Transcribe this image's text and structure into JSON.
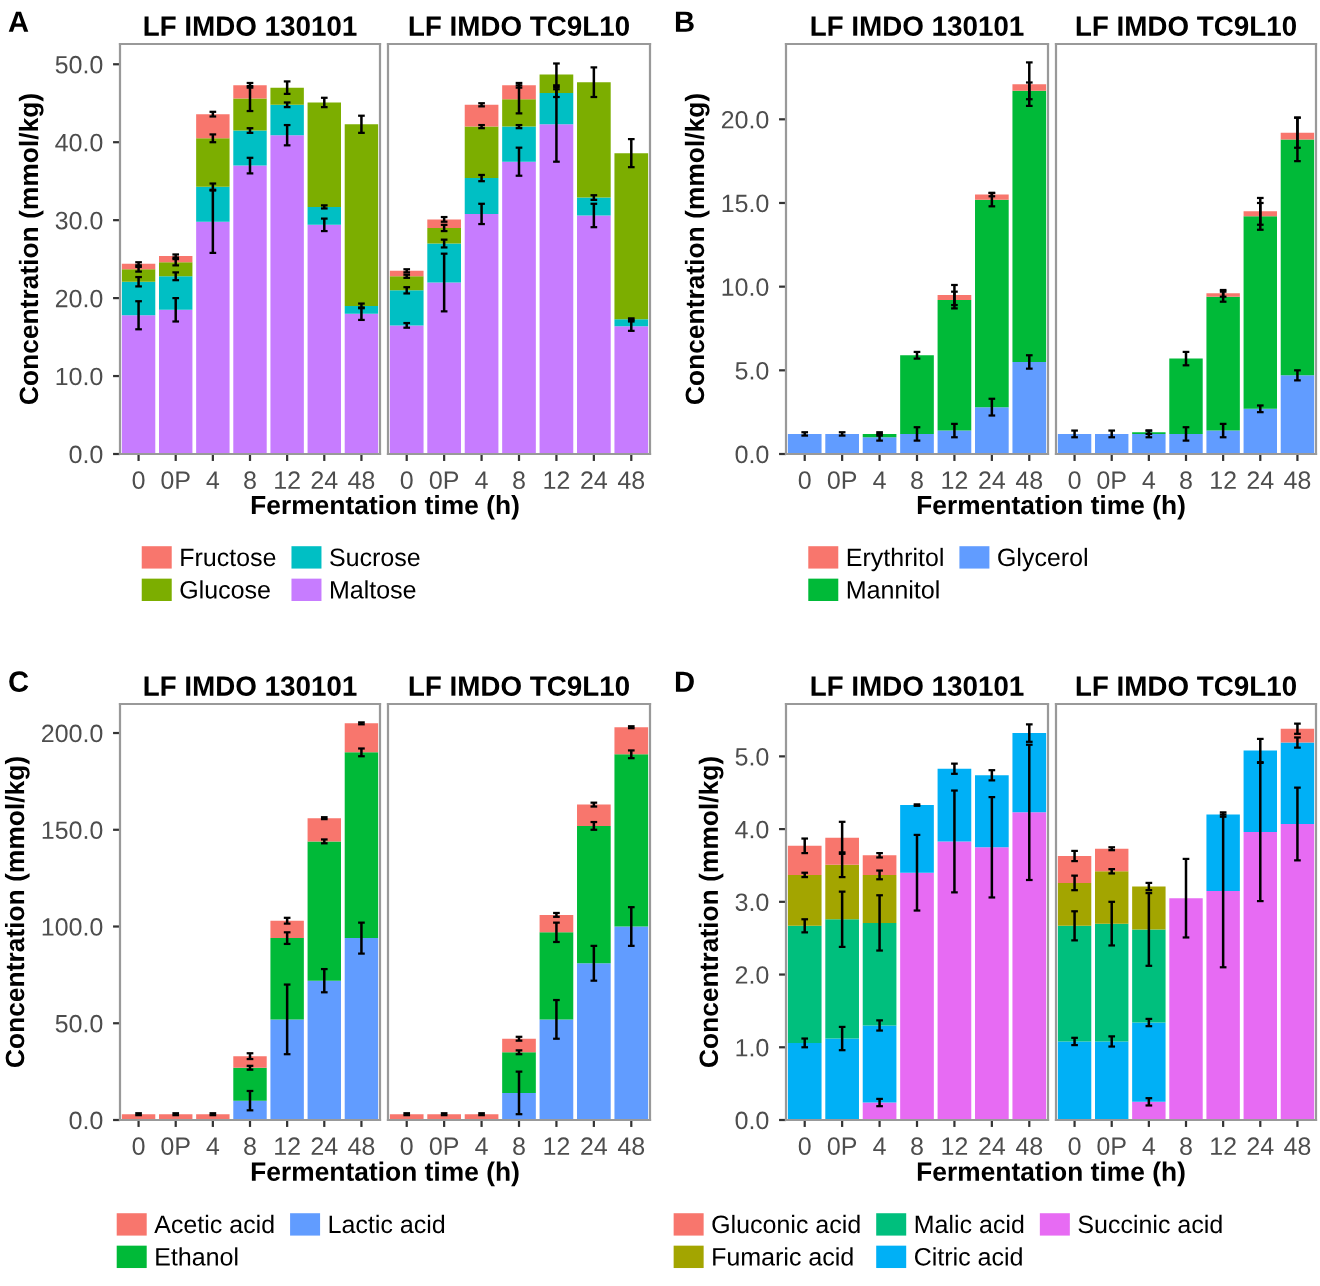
{
  "chart_data": [
    {
      "type": "bar",
      "stacked": true,
      "title": "LF IMDO 130101",
      "ylabel": "Concentration (mmol/kg)",
      "xlabel": "Fermentation time (h)",
      "annotations": [
        "A"
      ],
      "legend": "bottom",
      "categories": [
        "0",
        "0P",
        "4",
        "8",
        "12",
        "24",
        "48"
      ],
      "ylim": [
        0,
        52.6
      ],
      "yticks": [
        {
          "value": 0,
          "label": "0.0"
        },
        {
          "value": 10,
          "label": "10.0"
        },
        {
          "value": 20,
          "label": "20.0"
        },
        {
          "value": 30,
          "label": "30.0"
        },
        {
          "value": 40,
          "label": "40.0"
        },
        {
          "value": 50,
          "label": "50.0"
        }
      ],
      "series": [
        {
          "name": "Maltose",
          "color": "#c77cff",
          "values": [
            17.8,
            18.5,
            29.8,
            37.0,
            40.9,
            29.4,
            18.0
          ],
          "errors": [
            1.8,
            1.5,
            4.0,
            1.0,
            1.3,
            0.8,
            0.8
          ]
        },
        {
          "name": "Sucrose",
          "color": "#00bfc4",
          "values": [
            4.3,
            4.3,
            4.5,
            4.5,
            3.9,
            2.3,
            1.0
          ],
          "errors": [
            0.6,
            0.5,
            0.4,
            0.3,
            0.3,
            0.2,
            0.3
          ]
        },
        {
          "name": "Glucose",
          "color": "#7cae00",
          "values": [
            1.6,
            1.8,
            6.2,
            4.1,
            2.2,
            13.4,
            23.3
          ],
          "errors": [
            0.3,
            0.4,
            0.5,
            1.6,
            0.8,
            0.6,
            1.1
          ]
        },
        {
          "name": "Fructose",
          "color": "#f8766d",
          "values": [
            0.7,
            0.8,
            3.1,
            1.7,
            null,
            null,
            null
          ],
          "errors": [
            0.2,
            0.2,
            0.3,
            0.3,
            null,
            null,
            null
          ]
        }
      ]
    },
    {
      "type": "bar",
      "stacked": true,
      "title": "LF IMDO TC9L10",
      "tick_labels": "x",
      "categories": [
        "0",
        "0P",
        "4",
        "8",
        "12",
        "24",
        "48"
      ],
      "ylim": [
        0,
        52.6
      ],
      "series": [
        {
          "color": "#c77cff",
          "values": [
            16.5,
            22.0,
            30.8,
            37.5,
            42.3,
            30.6,
            16.4
          ],
          "errors": [
            0.3,
            3.7,
            1.3,
            1.8,
            4.8,
            1.5,
            0.6
          ]
        },
        {
          "color": "#00bfc4",
          "values": [
            4.5,
            5.0,
            4.6,
            4.5,
            4.0,
            2.3,
            0.9
          ],
          "errors": [
            0.4,
            0.5,
            0.4,
            0.2,
            0.5,
            0.3,
            0.1
          ]
        },
        {
          "color": "#7cae00",
          "values": [
            1.8,
            2.0,
            6.6,
            3.5,
            2.4,
            14.8,
            21.3
          ],
          "errors": [
            0.2,
            0.4,
            0.2,
            1.8,
            1.4,
            1.9,
            1.8
          ]
        },
        {
          "color": "#f8766d",
          "values": [
            0.7,
            1.1,
            2.8,
            1.8,
            null,
            null,
            null
          ],
          "errors": [
            0.2,
            0.3,
            0.2,
            0.3,
            null,
            null,
            null
          ]
        }
      ]
    },
    {
      "type": "bar",
      "stacked": true,
      "title": "LF IMDO 130101",
      "ylabel": "Concentration (mmol/kg)",
      "xlabel": "Fermentation time (h)",
      "annotations": [
        "B"
      ],
      "legend": "bottom",
      "categories": [
        "0",
        "0P",
        "4",
        "8",
        "12",
        "24",
        "48"
      ],
      "ylim": [
        0,
        24.5
      ],
      "yticks": [
        {
          "value": 0,
          "label": "0.0"
        },
        {
          "value": 5,
          "label": "5.0"
        },
        {
          "value": 10,
          "label": "10.0"
        },
        {
          "value": 15,
          "label": "15.0"
        },
        {
          "value": 20,
          "label": "20.0"
        }
      ],
      "series": [
        {
          "name": "Glycerol",
          "color": "#619cff",
          "values": [
            1.2,
            1.2,
            1.0,
            1.2,
            1.4,
            2.8,
            5.5
          ],
          "errors": [
            0.1,
            0.1,
            0.2,
            0.4,
            0.4,
            0.5,
            0.4
          ]
        },
        {
          "name": "Mannitol",
          "color": "#00ba38",
          "values": [
            null,
            null,
            0.2,
            4.7,
            7.8,
            12.4,
            16.2
          ],
          "errors": [
            null,
            null,
            0.1,
            0.2,
            0.5,
            0.4,
            0.5
          ]
        },
        {
          "name": "Erythritol",
          "color": "#f8766d",
          "values": [
            null,
            null,
            null,
            null,
            0.3,
            0.3,
            0.4
          ],
          "errors": [
            null,
            null,
            null,
            null,
            0.6,
            0.1,
            1.3
          ]
        }
      ]
    },
    {
      "type": "bar",
      "stacked": true,
      "title": "LF IMDO TC9L10",
      "tick_labels": "x",
      "categories": [
        "0",
        "0P",
        "4",
        "8",
        "12",
        "24",
        "48"
      ],
      "ylim": [
        0,
        24.5
      ],
      "series": [
        {
          "color": "#619cff",
          "values": [
            1.2,
            1.2,
            1.2,
            1.2,
            1.4,
            2.7,
            4.7
          ],
          "errors": [
            0.2,
            0.2,
            0.2,
            0.4,
            0.4,
            0.2,
            0.3
          ]
        },
        {
          "color": "#00ba38",
          "values": [
            null,
            null,
            0.1,
            4.5,
            8.0,
            11.5,
            14.1
          ],
          "errors": [
            null,
            null,
            0.1,
            0.4,
            0.3,
            0.8,
            1.3
          ]
        },
        {
          "color": "#f8766d",
          "values": [
            null,
            null,
            null,
            null,
            0.2,
            0.3,
            0.4
          ],
          "errors": [
            null,
            null,
            null,
            null,
            0.2,
            0.8,
            0.9
          ]
        }
      ]
    },
    {
      "type": "bar",
      "stacked": true,
      "title": "LF IMDO 130101",
      "ylabel": "Concentration (mmol/kg)",
      "xlabel": "Fermentation time (h)",
      "annotations": [
        "C"
      ],
      "legend": "bottom",
      "categories": [
        "0",
        "0P",
        "4",
        "8",
        "12",
        "24",
        "48"
      ],
      "ylim": [
        0,
        215
      ],
      "yticks": [
        {
          "value": 0,
          "label": "0.0"
        },
        {
          "value": 50,
          "label": "50.0"
        },
        {
          "value": 100,
          "label": "100.0"
        },
        {
          "value": 150,
          "label": "150.0"
        },
        {
          "value": 200,
          "label": "200.0"
        }
      ],
      "series": [
        {
          "name": "Lactic acid",
          "color": "#619cff",
          "values": [
            null,
            null,
            null,
            10,
            52,
            72,
            94
          ],
          "errors": [
            null,
            null,
            null,
            5,
            18,
            6,
            8
          ]
        },
        {
          "name": "Ethanol",
          "color": "#00ba38",
          "values": [
            null,
            null,
            null,
            17,
            42,
            72,
            96
          ],
          "errors": [
            null,
            null,
            null,
            1,
            3,
            1,
            2
          ]
        },
        {
          "name": "Acetic acid",
          "color": "#f8766d",
          "values": [
            3,
            3,
            3,
            6,
            9,
            12,
            15
          ],
          "errors": [
            0.5,
            0.5,
            0.5,
            1.5,
            1.5,
            0.5,
            0.5
          ]
        }
      ]
    },
    {
      "type": "bar",
      "stacked": true,
      "title": "LF IMDO TC9L10",
      "tick_labels": "x",
      "categories": [
        "0",
        "0P",
        "4",
        "8",
        "12",
        "24",
        "48"
      ],
      "ylim": [
        0,
        215
      ],
      "series": [
        {
          "color": "#619cff",
          "values": [
            null,
            null,
            null,
            14,
            52,
            81,
            100
          ],
          "errors": [
            null,
            null,
            null,
            11,
            10,
            9,
            10
          ]
        },
        {
          "color": "#00ba38",
          "values": [
            null,
            null,
            null,
            21,
            45,
            71,
            89
          ],
          "errors": [
            null,
            null,
            null,
            1,
            5,
            2,
            2
          ]
        },
        {
          "color": "#f8766d",
          "values": [
            3,
            3,
            3,
            7,
            9,
            11,
            14
          ],
          "errors": [
            0.5,
            0.5,
            0.5,
            1,
            1,
            1,
            0.5
          ]
        }
      ]
    },
    {
      "type": "bar",
      "stacked": true,
      "title": "LF IMDO 130101",
      "ylabel": "Concentration (mmol/kg)",
      "xlabel": "Fermentation time (h)",
      "annotations": [
        "D"
      ],
      "legend": "bottom",
      "categories": [
        "0",
        "0P",
        "4",
        "8",
        "12",
        "24",
        "48"
      ],
      "ylim": [
        0,
        5.72
      ],
      "yticks": [
        {
          "value": 0,
          "label": "0.0"
        },
        {
          "value": 1,
          "label": "1.0"
        },
        {
          "value": 2,
          "label": "2.0"
        },
        {
          "value": 3,
          "label": "3.0"
        },
        {
          "value": 4,
          "label": "4.0"
        },
        {
          "value": 5,
          "label": "5.0"
        }
      ],
      "series": [
        {
          "name": "Succinic acid",
          "color": "#e76bf3",
          "values": [
            null,
            null,
            0.24,
            3.4,
            3.83,
            3.75,
            4.23
          ],
          "errors": [
            null,
            null,
            0.05,
            0.52,
            0.7,
            0.69,
            0.93
          ]
        },
        {
          "name": "Citric acid",
          "color": "#00b0f6",
          "values": [
            1.06,
            1.12,
            1.06,
            0.93,
            1.0,
            0.99,
            1.09
          ],
          "errors": [
            0.06,
            0.16,
            0.07,
            0.01,
            0.07,
            0.07,
            0.12
          ]
        },
        {
          "name": "Malic acid",
          "color": "#00bf7d",
          "values": [
            1.61,
            1.64,
            1.41,
            null,
            null,
            null,
            null
          ],
          "errors": [
            0.09,
            0.38,
            0.38,
            null,
            null,
            null,
            null
          ]
        },
        {
          "name": "Fumaric acid",
          "color": "#a3a500",
          "values": [
            0.7,
            0.75,
            0.66,
            null,
            null,
            null,
            null
          ],
          "errors": [
            0.03,
            0.17,
            0.06,
            null,
            null,
            null,
            null
          ]
        },
        {
          "name": "Gluconic acid",
          "color": "#f8766d",
          "values": [
            0.4,
            0.37,
            0.27,
            null,
            null,
            null,
            null
          ],
          "errors": [
            0.1,
            0.22,
            0.03,
            null,
            null,
            null,
            null
          ]
        }
      ]
    },
    {
      "type": "bar",
      "stacked": true,
      "title": "LF IMDO TC9L10",
      "tick_labels": "x",
      "categories": [
        "0",
        "0P",
        "4",
        "8",
        "12",
        "24",
        "48"
      ],
      "ylim": [
        0,
        5.72
      ],
      "series": [
        {
          "color": "#e76bf3",
          "values": [
            null,
            null,
            0.25,
            3.05,
            3.15,
            3.96,
            4.07
          ],
          "errors": [
            null,
            null,
            0.05,
            0.54,
            1.05,
            0.95,
            0.5
          ]
        },
        {
          "color": "#00b0f6",
          "values": [
            1.08,
            1.08,
            1.09,
            null,
            1.05,
            1.12,
            1.12
          ],
          "errors": [
            0.05,
            0.07,
            0.05,
            null,
            0.03,
            0.16,
            0.07
          ]
        },
        {
          "color": "#00bf7d",
          "values": [
            1.59,
            1.62,
            1.28,
            null,
            null,
            null,
            null
          ],
          "errors": [
            0.2,
            0.3,
            0.5,
            null,
            null,
            null,
            null
          ]
        },
        {
          "color": "#a3a500",
          "values": [
            0.59,
            0.72,
            0.59,
            null,
            null,
            null,
            null
          ],
          "errors": [
            0.1,
            0.03,
            0.05,
            null,
            null,
            null,
            null
          ]
        },
        {
          "color": "#f8766d",
          "values": [
            0.37,
            0.31,
            null,
            null,
            null,
            null,
            0.19
          ],
          "errors": [
            0.07,
            0.02,
            null,
            null,
            null,
            null,
            0.07
          ]
        }
      ]
    }
  ]
}
